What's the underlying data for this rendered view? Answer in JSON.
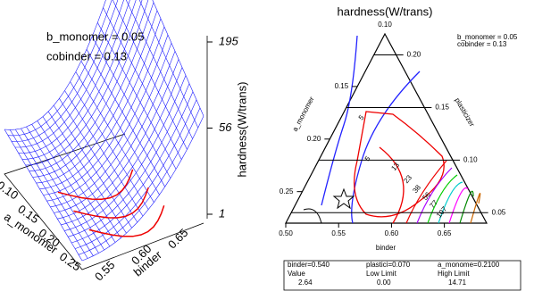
{
  "chart_data": [
    {
      "type": "surface",
      "annotations": [
        "b_monomer = 0.05",
        "cobinder = 0.13"
      ],
      "xlabel": "a_monomer",
      "xlim": [
        0.1,
        0.25
      ],
      "xticks": [
        {
          "value": 0.1,
          "label": "0.10"
        },
        {
          "value": 0.15,
          "label": "0.15"
        },
        {
          "value": 0.2,
          "label": "0.20"
        },
        {
          "value": 0.25,
          "label": "0.25"
        }
      ],
      "ylabel": "binder",
      "ylim": [
        0.55,
        0.65
      ],
      "yticks": [
        {
          "value": 0.55,
          "label": "0.55"
        },
        {
          "value": 0.6,
          "label": "0.60"
        },
        {
          "value": 0.65,
          "label": "0.65"
        }
      ],
      "zlabel": "hardness(W/trans)",
      "zscale": "sqrt",
      "zlim": [
        1,
        195
      ],
      "zticks": [
        1,
        56,
        195
      ],
      "color": "#1a1aff"
    },
    {
      "type": "ternary",
      "title": "hardness(W/trans)",
      "annotations": [
        "b_monomer = 0.05",
        "cobinder = 0.13"
      ],
      "apex_label": {
        "value": 0.1,
        "label": "0.10"
      },
      "left_axis": {
        "label": "a_monomer",
        "lim": [
          0.1,
          0.28
        ],
        "ticks": [
          {
            "value": 0.15,
            "label": "0.15"
          },
          {
            "value": 0.2,
            "label": "0.20"
          },
          {
            "value": 0.25,
            "label": "0.25"
          }
        ]
      },
      "right_axis": {
        "label": "plasticizer",
        "lim": [
          0.22,
          0.04
        ],
        "ticks": [
          {
            "value": 0.2,
            "label": "0.20"
          },
          {
            "value": 0.15,
            "label": "0.15"
          },
          {
            "value": 0.1,
            "label": "0.10"
          },
          {
            "value": 0.05,
            "label": "0.05"
          }
        ]
      },
      "bottom_axis": {
        "label": "binder",
        "lim": [
          0.5,
          0.69
        ],
        "ticks": [
          {
            "value": 0.5,
            "label": "0.50"
          },
          {
            "value": 0.55,
            "label": "0.55"
          },
          {
            "value": 0.6,
            "label": "0.60"
          },
          {
            "value": 0.65,
            "label": "0.65"
          }
        ]
      },
      "contour_labels": [
        5,
        5,
        13,
        23,
        38,
        56,
        77,
        107
      ]
    }
  ],
  "table": {
    "rows": [
      [
        "binder=0.540",
        "plastici=0.070",
        "a_monome=0.2100"
      ],
      [
        "Value",
        "Low Limit",
        "High Limit"
      ],
      [
        "2.64",
        "0.00",
        "14.71"
      ]
    ]
  }
}
